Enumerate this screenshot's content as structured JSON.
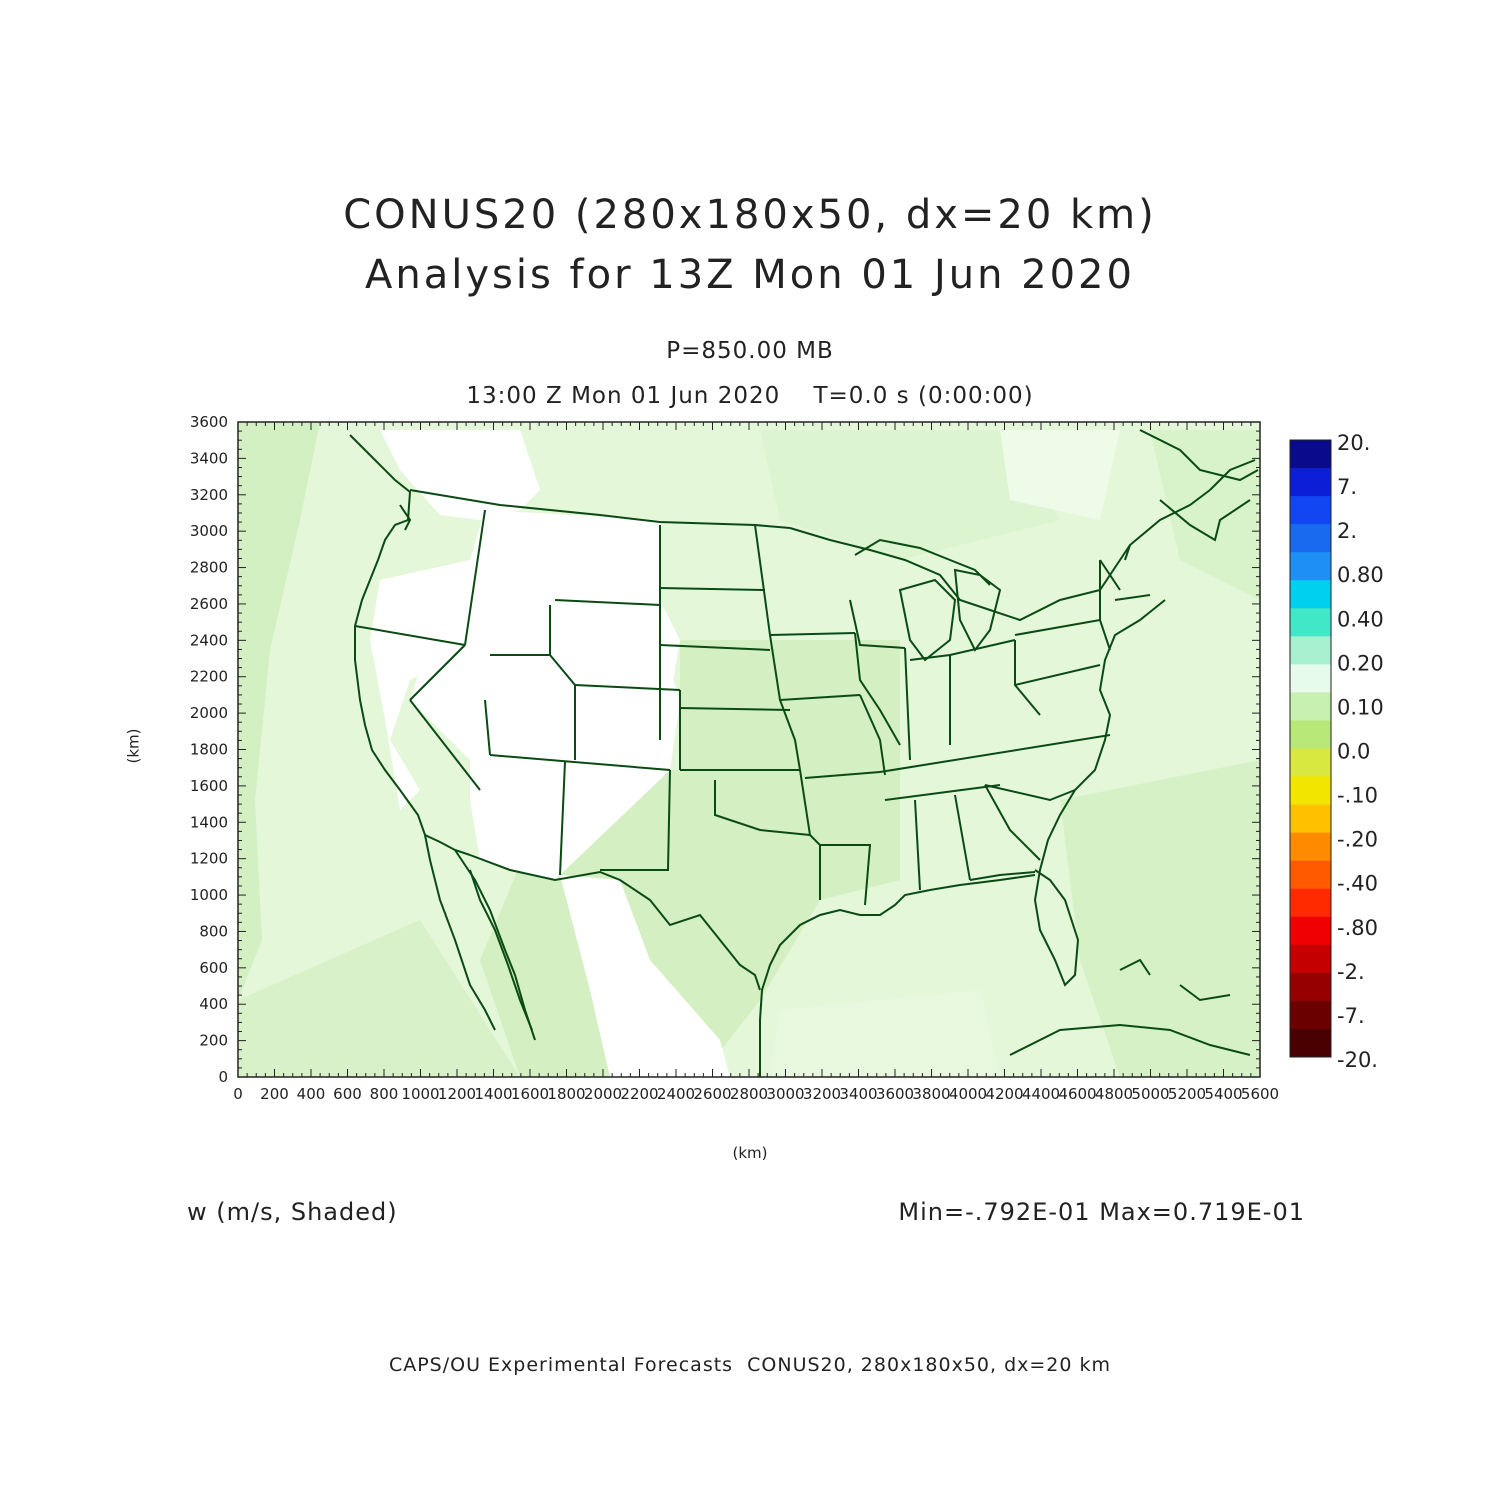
{
  "header": {
    "title_line1": "CONUS20 (280x180x50, dx=20 km)",
    "title_line2": "Analysis for 13Z Mon 01 Jun 2020",
    "level": "P=850.00 MB",
    "time": "13:00 Z Mon 01 Jun 2020    T=0.0 s (0:00:00)"
  },
  "axes": {
    "x_unit": "(km)",
    "y_unit": "(km)",
    "x_range": [
      0,
      5600
    ],
    "y_range": [
      0,
      3600
    ],
    "x_ticks": [
      "0",
      "200",
      "400",
      "600",
      "800",
      "1000",
      "1200",
      "1400",
      "1600",
      "1800",
      "2000",
      "2200",
      "2400",
      "2600",
      "2800",
      "3000",
      "3200",
      "3400",
      "3600",
      "3800",
      "4000",
      "4200",
      "4400",
      "4600",
      "4800",
      "5000",
      "5200",
      "5400",
      "5600"
    ],
    "y_ticks": [
      "0",
      "200",
      "400",
      "600",
      "800",
      "1000",
      "1200",
      "1400",
      "1600",
      "1800",
      "2000",
      "2200",
      "2400",
      "2600",
      "2800",
      "3000",
      "3200",
      "3400",
      "3600"
    ]
  },
  "colorbar": {
    "labels": [
      "20.",
      "7.",
      "2.",
      "0.80",
      "0.40",
      "0.20",
      "0.10",
      "0.0",
      "-.10",
      "-.20",
      "-.40",
      "-.80",
      "-2.",
      "-7.",
      "-20."
    ],
    "colors": [
      "#0a0a8c",
      "#0d1fd6",
      "#1146f2",
      "#1a6af0",
      "#1e90f5",
      "#00d0f0",
      "#40e8c8",
      "#a8f0d0",
      "#e6fbec",
      "#c8f0b0",
      "#b8e878",
      "#d8e840",
      "#f2e600",
      "#ffc000",
      "#ff8c00",
      "#ff5a00",
      "#ff2a00",
      "#f00000",
      "#c40000",
      "#960000",
      "#6a0000",
      "#4a0000"
    ]
  },
  "footer": {
    "variable": "w (m/s, Shaded)",
    "minmax": "Min=-.792E-01 Max=0.719E-01",
    "credit": "CAPS/OU Experimental Forecasts  CONUS20, 280x180x50, dx=20 km"
  },
  "map": {
    "background_color": "#e4f7d9",
    "boundary_color": "#0a4a14"
  }
}
